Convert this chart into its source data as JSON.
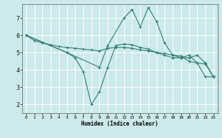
{
  "xlabel": "Humidex (Indice chaleur)",
  "bg_color": "#cce9eb",
  "grid_color": "#ffffff",
  "line_color": "#2a7a6f",
  "xlim": [
    -0.5,
    23.5
  ],
  "ylim": [
    1.5,
    7.8
  ],
  "yticks": [
    2,
    3,
    4,
    5,
    6,
    7
  ],
  "xticks": [
    0,
    1,
    2,
    3,
    4,
    5,
    6,
    7,
    8,
    9,
    10,
    11,
    12,
    13,
    14,
    15,
    16,
    17,
    18,
    19,
    20,
    21,
    22,
    23
  ],
  "line1_x": [
    0,
    1,
    2,
    3,
    4,
    5,
    6,
    7,
    8,
    9,
    10,
    11,
    12,
    13,
    14,
    15,
    16,
    17,
    18,
    19,
    20,
    21,
    22,
    23
  ],
  "line1_y": [
    6.0,
    5.7,
    5.55,
    5.45,
    5.35,
    5.3,
    5.25,
    5.2,
    5.15,
    5.1,
    5.25,
    5.3,
    5.3,
    5.25,
    5.15,
    5.1,
    5.0,
    4.95,
    4.85,
    4.8,
    4.5,
    4.4,
    4.35,
    3.6
  ],
  "line2_x": [
    0,
    5,
    9,
    10,
    12,
    13,
    14,
    15,
    16,
    17,
    18,
    19,
    20,
    21,
    22,
    23
  ],
  "line2_y": [
    6.0,
    5.0,
    4.15,
    5.4,
    7.0,
    7.5,
    6.5,
    7.6,
    6.8,
    5.55,
    4.85,
    4.7,
    4.7,
    4.85,
    4.4,
    3.6
  ],
  "line3_x": [
    0,
    5,
    6,
    7,
    8,
    9,
    10,
    11,
    12,
    13,
    14,
    15,
    16,
    17,
    18,
    19,
    20,
    21,
    22,
    23
  ],
  "line3_y": [
    6.0,
    5.0,
    4.7,
    3.9,
    2.0,
    2.75,
    4.15,
    5.4,
    5.5,
    5.45,
    5.3,
    5.2,
    5.0,
    4.85,
    4.7,
    4.7,
    4.85,
    4.4,
    3.6,
    3.6
  ]
}
